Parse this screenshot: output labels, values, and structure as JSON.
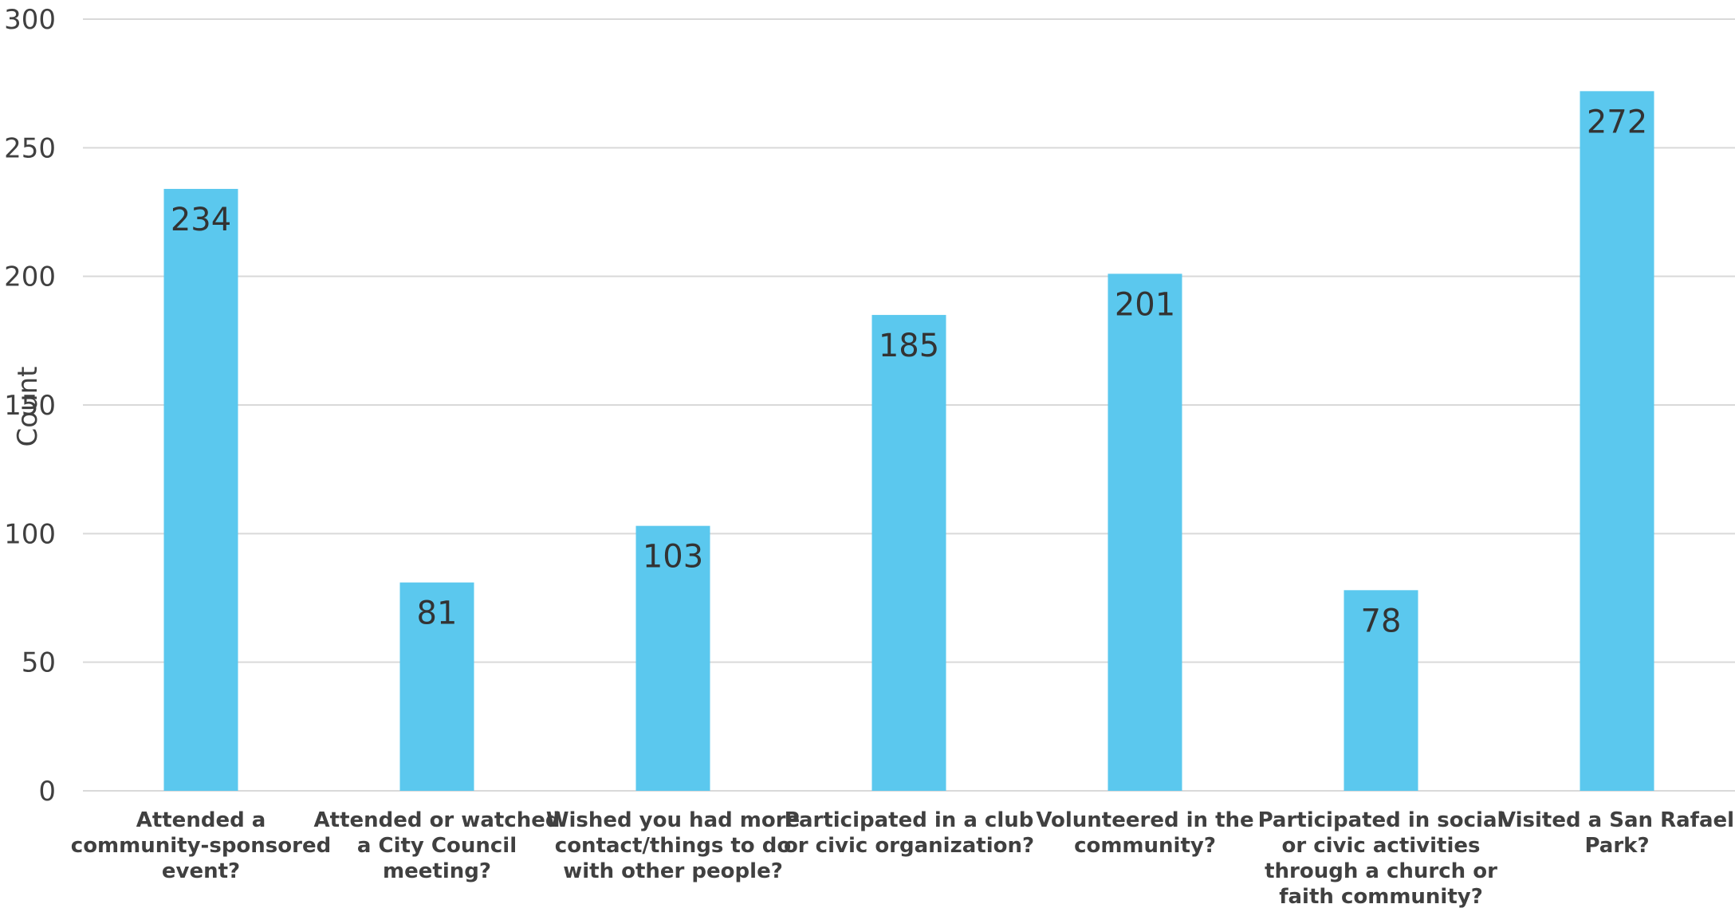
{
  "chart_data": {
    "type": "bar",
    "categories": [
      "Attended a community-sponsored event?",
      "Attended or watched a City Council meeting?",
      "Wished you had more contact/things to do with other people?",
      "Participated in a club or civic organization?",
      "Volunteered in the community?",
      "Participated in social or civic activities through a church or faith community?",
      "Visited a San Rafael Park?"
    ],
    "category_lines": [
      [
        "Attended a",
        "community-sponsored",
        "event?"
      ],
      [
        "Attended or watched",
        "a City Council",
        "meeting?"
      ],
      [
        "Wished you had more",
        "contact/things to do",
        "with other people?"
      ],
      [
        "Participated in a club",
        "or civic organization?"
      ],
      [
        "Volunteered in the",
        "community?"
      ],
      [
        "Participated in social",
        "or civic activities",
        "through a church or",
        "faith community?"
      ],
      [
        "Visited a San Rafael",
        "Park?"
      ]
    ],
    "values": [
      234,
      81,
      103,
      185,
      201,
      78,
      272
    ],
    "ylabel": "Count",
    "ylim": [
      0,
      300
    ],
    "yticks": [
      0,
      50,
      100,
      150,
      200,
      250,
      300
    ],
    "grid": true,
    "legend": "none",
    "bar_color": "#5BC8EE",
    "grid_color": "#d9d9d9"
  }
}
